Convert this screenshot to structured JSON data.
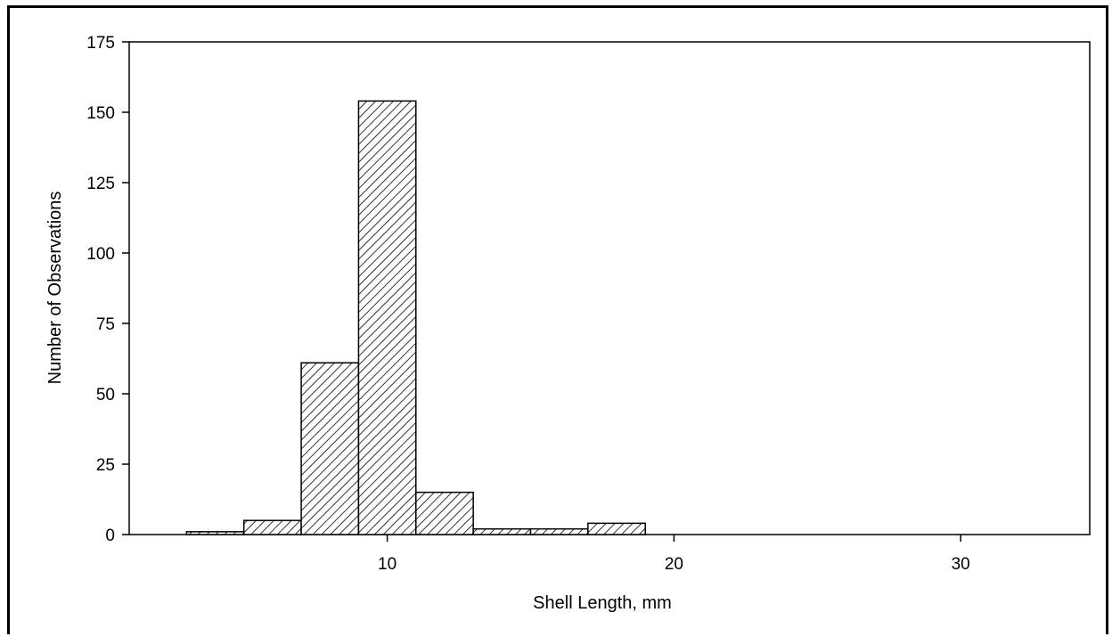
{
  "chart_data": {
    "type": "bar",
    "title": "",
    "xlabel": "Shell Length, mm",
    "ylabel": "Number of Observations",
    "xlim": [
      1,
      34.5
    ],
    "ylim": [
      0,
      175
    ],
    "xticks": [
      10,
      20,
      30
    ],
    "yticks": [
      0,
      25,
      50,
      75,
      100,
      125,
      150,
      175
    ],
    "bin_width": 2,
    "bins": [
      {
        "start": 3,
        "end": 5,
        "value": 1
      },
      {
        "start": 5,
        "end": 7,
        "value": 5
      },
      {
        "start": 7,
        "end": 9,
        "value": 61
      },
      {
        "start": 9,
        "end": 11,
        "value": 154
      },
      {
        "start": 11,
        "end": 13,
        "value": 15
      },
      {
        "start": 13,
        "end": 15,
        "value": 2
      },
      {
        "start": 15,
        "end": 17,
        "value": 2
      },
      {
        "start": 17,
        "end": 19,
        "value": 4
      }
    ],
    "bar_pattern": "diagonal-hatch",
    "grid": false,
    "legend": "none"
  },
  "colors": {
    "bar_fill": "#ffffff",
    "bar_stroke": "#000000",
    "hatch": "#000000",
    "axis": "#000000"
  }
}
